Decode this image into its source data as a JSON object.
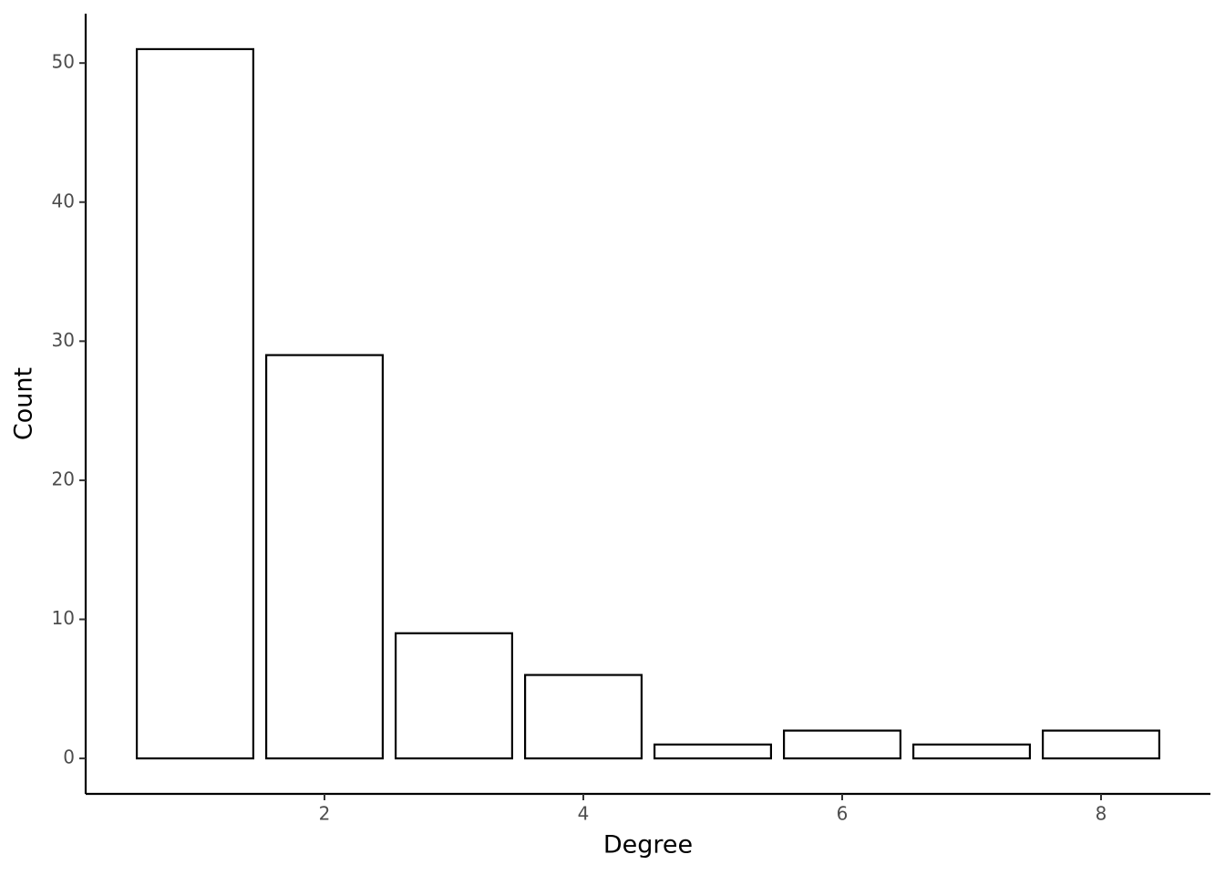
{
  "chart_data": {
    "type": "bar",
    "x_label": "Degree",
    "y_label": "Count",
    "x": [
      1,
      2,
      3,
      4,
      5,
      6,
      7,
      8
    ],
    "values": [
      51,
      29,
      9,
      6,
      1,
      2,
      1,
      2
    ],
    "color": "#ffffff",
    "edgecolor": "#000000",
    "xlim": [
      0.155,
      8.845
    ],
    "xticks": [
      2,
      4,
      6,
      8
    ],
    "ylim": [
      -2.55,
      53.55
    ],
    "yticks": [
      0,
      10,
      20,
      30,
      40,
      50
    ],
    "grid": false
  }
}
